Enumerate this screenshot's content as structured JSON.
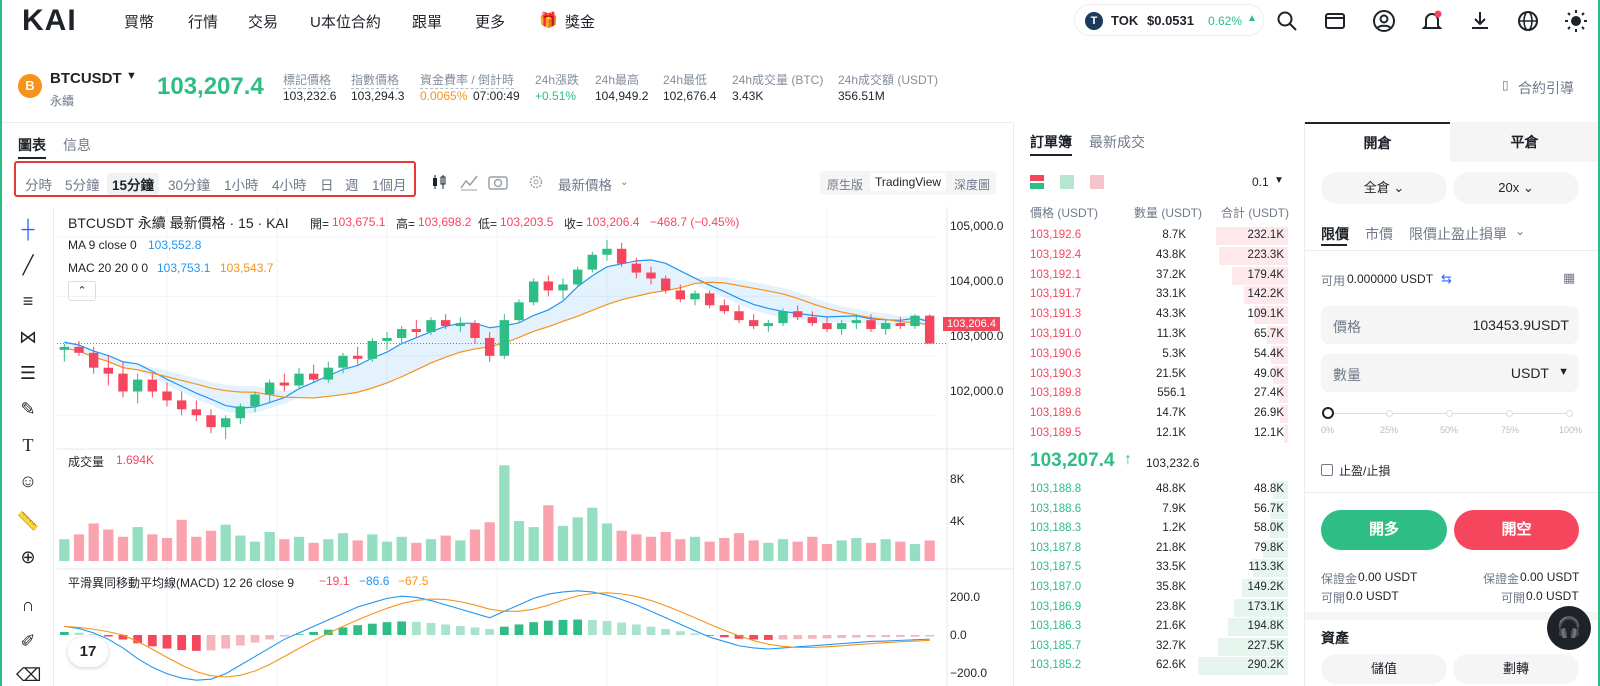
{
  "nav": {
    "logo": "KAI",
    "items": [
      "買幣",
      "行情",
      "交易",
      "U本位合約",
      "跟單",
      "更多"
    ],
    "bonus": "獎金",
    "tok": {
      "symbol": "TOK",
      "price": "$0.0531",
      "change": "0.62%",
      "icon": "T"
    }
  },
  "ticker": {
    "symbol": "BTCUSDT",
    "sub": "永續",
    "price": "103,207.4",
    "coin_icon": "B",
    "stats": [
      {
        "label": "標記價格",
        "value": "103,232.6"
      },
      {
        "label": "指數價格",
        "value": "103,294.3"
      },
      {
        "label": "資金費率 / 倒計時",
        "value": "0.0065%",
        "value2": "07:00:49"
      },
      {
        "label": "24h漲跌",
        "value": "+0.51%"
      },
      {
        "label": "24h最高",
        "value": "104,949.2"
      },
      {
        "label": "24h最低",
        "value": "102,676.4"
      },
      {
        "label": "24h成交量 (BTC)",
        "value": "3.43K"
      },
      {
        "label": "24h成交額 (USDT)",
        "value": "356.51M"
      }
    ],
    "guide": "合約引導"
  },
  "chart": {
    "tabs": [
      "圖表",
      "信息"
    ],
    "timeframes": [
      "分時",
      "5分鐘",
      "15分鐘",
      "30分鐘",
      "1小時",
      "4小時",
      "日",
      "週",
      "1個月"
    ],
    "active_tf": "15分鐘",
    "price_type": "最新價格",
    "views": [
      "原生版",
      "TradingView",
      "深度圖"
    ],
    "title": "BTCUSDT 永續 最新價格 · 15 · KAI",
    "ohlc": {
      "o_label": "開=",
      "o": "103,675.1",
      "h_label": "高=",
      "h": "103,698.2",
      "l_label": "低=",
      "l": "103,203.5",
      "c_label": "收=",
      "c": "103,206.4",
      "chg": "−468.7 (−0.45%)"
    },
    "ma_label": "MA 9 close 0",
    "ma_value": "103,552.8",
    "mac_label": "MAC 20 20 0 0",
    "mac_v1": "103,753.1",
    "mac_v2": "103,543.7",
    "price_ticks": [
      "105,000.0",
      "104,000.0",
      "103,000.0",
      "102,000.0"
    ],
    "last_price_tag": "103,206.4",
    "vol_label": "成交量",
    "vol_value": "1.694K",
    "vol_ticks": [
      "8K",
      "4K"
    ],
    "macd_label": "平滑異同移動平均線(MACD) 12 26 close 9",
    "macd_v1": "−19.1",
    "macd_v2": "−86.6",
    "macd_v3": "−67.5",
    "macd_ticks": [
      "200.0",
      "0.0",
      "−200.0"
    ],
    "tv_logo": "17",
    "colors": {
      "up": "#2ebd85",
      "down": "#f6465d",
      "ma": "#2196f3",
      "mac2": "#f7931a"
    }
  },
  "chart_data": {
    "type": "candlestick",
    "title": "BTCUSDT 永續 最新價格 · 15 · KAI",
    "ylim": [
      101500,
      105200
    ],
    "candles": [
      [
        103100,
        103200,
        102900,
        103150
      ],
      [
        103150,
        103250,
        103000,
        103050
      ],
      [
        103050,
        103150,
        102700,
        102800
      ],
      [
        102800,
        103000,
        102500,
        102700
      ],
      [
        102700,
        102900,
        102300,
        102400
      ],
      [
        102400,
        102700,
        102200,
        102600
      ],
      [
        102600,
        102700,
        102300,
        102400
      ],
      [
        102400,
        102550,
        102150,
        102250
      ],
      [
        102250,
        102400,
        102000,
        102100
      ],
      [
        102100,
        102250,
        101900,
        102000
      ],
      [
        102000,
        102100,
        101700,
        101800
      ],
      [
        101800,
        102000,
        101600,
        101950
      ],
      [
        101950,
        102200,
        101850,
        102150
      ],
      [
        102150,
        102400,
        102050,
        102350
      ],
      [
        102350,
        102600,
        102200,
        102550
      ],
      [
        102550,
        102700,
        102400,
        102500
      ],
      [
        102500,
        102800,
        102450,
        102700
      ],
      [
        102700,
        102850,
        102550,
        102600
      ],
      [
        102600,
        102900,
        102550,
        102800
      ],
      [
        102800,
        103050,
        102700,
        103000
      ],
      [
        103000,
        103150,
        102850,
        102950
      ],
      [
        102950,
        103300,
        102900,
        103250
      ],
      [
        103250,
        103400,
        103100,
        103300
      ],
      [
        103300,
        103500,
        103200,
        103450
      ],
      [
        103450,
        103600,
        103300,
        103400
      ],
      [
        103400,
        103650,
        103350,
        103600
      ],
      [
        103600,
        103700,
        103450,
        103500
      ],
      [
        103500,
        103650,
        103400,
        103550
      ],
      [
        103550,
        103600,
        103200,
        103300
      ],
      [
        103300,
        103400,
        102900,
        103000
      ],
      [
        103000,
        103700,
        102950,
        103600
      ],
      [
        103600,
        103950,
        103550,
        103900
      ],
      [
        103900,
        104300,
        103850,
        104250
      ],
      [
        104250,
        104350,
        104000,
        104100
      ],
      [
        104100,
        104300,
        103950,
        104200
      ],
      [
        104200,
        104500,
        104150,
        104450
      ],
      [
        104450,
        104750,
        104400,
        104700
      ],
      [
        104700,
        104950,
        104600,
        104800
      ],
      [
        104800,
        104900,
        104500,
        104550
      ],
      [
        104550,
        104650,
        104300,
        104400
      ],
      [
        104400,
        104500,
        104200,
        104300
      ],
      [
        104300,
        104350,
        104050,
        104100
      ],
      [
        104100,
        104200,
        103900,
        103950
      ],
      [
        103950,
        104100,
        103850,
        104050
      ],
      [
        104050,
        104100,
        103800,
        103850
      ],
      [
        103850,
        103950,
        103700,
        103750
      ],
      [
        103750,
        103850,
        103550,
        103600
      ],
      [
        103600,
        103700,
        103450,
        103500
      ],
      [
        103500,
        103600,
        103400,
        103550
      ],
      [
        103550,
        103800,
        103500,
        103750
      ],
      [
        103750,
        103850,
        103600,
        103650
      ],
      [
        103650,
        103750,
        103500,
        103550
      ],
      [
        103550,
        103650,
        103400,
        103450
      ],
      [
        103450,
        103600,
        103350,
        103550
      ],
      [
        103550,
        103700,
        103450,
        103600
      ],
      [
        103600,
        103700,
        103400,
        103450
      ],
      [
        103450,
        103600,
        103350,
        103550
      ],
      [
        103550,
        103650,
        103450,
        103500
      ],
      [
        103500,
        103700,
        103450,
        103675
      ],
      [
        103675,
        103698,
        103203,
        103206
      ]
    ],
    "volume": [
      1.8,
      2.2,
      3.1,
      2.6,
      2.0,
      2.8,
      2.2,
      1.9,
      3.4,
      2.0,
      2.5,
      3.0,
      2.1,
      1.6,
      2.4,
      1.8,
      2.0,
      1.5,
      1.8,
      2.3,
      1.7,
      2.2,
      1.6,
      2.0,
      1.5,
      1.8,
      2.1,
      1.7,
      2.6,
      3.2,
      7.9,
      3.3,
      2.8,
      4.6,
      2.9,
      3.6,
      4.4,
      3.1,
      2.5,
      2.2,
      2.0,
      2.4,
      1.8,
      2.0,
      1.6,
      1.9,
      2.3,
      1.7,
      1.5,
      1.8,
      1.6,
      2.0,
      1.4,
      1.7,
      1.9,
      1.5,
      1.8,
      1.6,
      1.4,
      1.694
    ],
    "macd": [
      40,
      30,
      10,
      -20,
      -60,
      -110,
      -150,
      -180,
      -200,
      -210,
      -205,
      -180,
      -140,
      -100,
      -60,
      -20,
      10,
      40,
      70,
      100,
      130,
      150,
      170,
      180,
      175,
      160,
      140,
      120,
      100,
      80,
      110,
      140,
      170,
      190,
      200,
      205,
      200,
      185,
      165,
      140,
      110,
      80,
      50,
      20,
      -10,
      -30,
      -50,
      -60,
      -65,
      -60,
      -55,
      -50,
      -45,
      -40,
      -35,
      -30,
      -28,
      -25,
      -22,
      -19.1
    ]
  },
  "orderbook": {
    "tabs": [
      "訂單簿",
      "最新成交"
    ],
    "precision": "0.1",
    "headers": [
      "價格 (USDT)",
      "數量 (USDT)",
      "合計 (USDT)"
    ],
    "asks": [
      [
        "103,192.6",
        "8.7K",
        "232.1K",
        0.8
      ],
      [
        "103,192.4",
        "43.8K",
        "223.3K",
        0.77
      ],
      [
        "103,192.1",
        "37.2K",
        "179.4K",
        0.62
      ],
      [
        "103,191.7",
        "33.1K",
        "142.2K",
        0.49
      ],
      [
        "103,191.3",
        "43.3K",
        "109.1K",
        0.38
      ],
      [
        "103,191.0",
        "11.3K",
        "65.7K",
        0.23
      ],
      [
        "103,190.6",
        "5.3K",
        "54.4K",
        0.19
      ],
      [
        "103,190.3",
        "21.5K",
        "49.0K",
        0.17
      ],
      [
        "103,189.8",
        "556.1",
        "27.4K",
        0.1
      ],
      [
        "103,189.6",
        "14.7K",
        "26.9K",
        0.09
      ],
      [
        "103,189.5",
        "12.1K",
        "12.1K",
        0.04
      ]
    ],
    "mid_price": "103,207.4",
    "mid_arrow": "↑",
    "mid_mark": "103,232.6",
    "bids": [
      [
        "103,188.8",
        "48.8K",
        "48.8K",
        0.17
      ],
      [
        "103,188.6",
        "7.9K",
        "56.7K",
        0.2
      ],
      [
        "103,188.3",
        "1.2K",
        "58.0K",
        0.2
      ],
      [
        "103,187.8",
        "21.8K",
        "79.8K",
        0.28
      ],
      [
        "103,187.5",
        "33.5K",
        "113.3K",
        0.39
      ],
      [
        "103,187.0",
        "35.8K",
        "149.2K",
        0.51
      ],
      [
        "103,186.9",
        "23.8K",
        "173.1K",
        0.6
      ],
      [
        "103,186.3",
        "21.6K",
        "194.8K",
        0.67
      ],
      [
        "103,185.7",
        "32.7K",
        "227.5K",
        0.78
      ],
      [
        "103,185.2",
        "62.6K",
        "290.2K",
        1.0
      ]
    ]
  },
  "trade": {
    "tabs": [
      "開倉",
      "平倉"
    ],
    "margin_mode": "全倉",
    "leverage": "20x",
    "order_types": [
      "限價",
      "市價",
      "限價止盈止損單"
    ],
    "avail_label": "可用",
    "avail_value": "0.000000 USDT",
    "price_label": "價格",
    "price_value": "103453.9",
    "price_unit": "USDT",
    "qty_label": "數量",
    "qty_unit": "USDT",
    "slider": [
      "0%",
      "25%",
      "50%",
      "75%",
      "100%"
    ],
    "slider_value": 0,
    "tpsl": "止盈/止損",
    "buy": "開多",
    "sell": "開空",
    "margin_label": "保證金",
    "margin_value": "0.00 USDT",
    "open_label": "可開",
    "open_value": "0.0 USDT",
    "assets": "資產",
    "bottom_btns": [
      "儲值",
      "劃轉"
    ]
  }
}
